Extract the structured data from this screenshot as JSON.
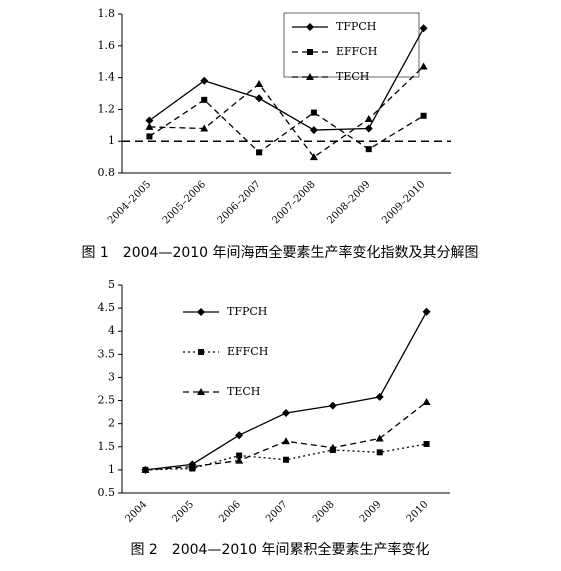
{
  "chart_data": [
    {
      "type": "line",
      "caption": "图 1　2004—2010 年间海西全要素生产率变化指数及其分解图",
      "categories": [
        "2004–2005",
        "2005–2006",
        "2006–2007",
        "2007–2008",
        "2008–2009",
        "2009–2010"
      ],
      "series": [
        {
          "name": "TFPCH",
          "color": "#000000",
          "line_style": "solid",
          "marker": "diamond",
          "values": [
            1.13,
            1.38,
            1.27,
            1.07,
            1.08,
            1.71
          ]
        },
        {
          "name": "EFFCH",
          "color": "#000000",
          "line_style": "dashed",
          "marker": "square",
          "values": [
            1.03,
            1.26,
            0.93,
            1.18,
            0.95,
            1.16
          ]
        },
        {
          "name": "TECH",
          "color": "#000000",
          "line_style": "dashed",
          "marker": "triangle",
          "values": [
            1.09,
            1.08,
            1.36,
            0.9,
            1.14,
            1.47
          ]
        }
      ],
      "ylim": [
        0.8,
        1.8
      ],
      "yticks": [
        0.8,
        1,
        1.2,
        1.4,
        1.6,
        1.8
      ],
      "reference_line": 1,
      "legend": "upper right",
      "legend_box": true
    },
    {
      "type": "line",
      "caption": "图 2　2004—2010 年间累积全要素生产率变化",
      "categories": [
        "2004",
        "2005",
        "2006",
        "2007",
        "2008",
        "2009",
        "2010"
      ],
      "series": [
        {
          "name": "TFPCH",
          "color": "#000000",
          "line_style": "solid",
          "marker": "diamond",
          "values": [
            1.0,
            1.12,
            1.75,
            2.23,
            2.39,
            2.58,
            4.42
          ]
        },
        {
          "name": "EFFCH",
          "color": "#000000",
          "line_style": "dotted",
          "marker": "square",
          "values": [
            1.0,
            1.03,
            1.31,
            1.22,
            1.43,
            1.38,
            1.56
          ]
        },
        {
          "name": "TECH",
          "color": "#000000",
          "line_style": "dashed",
          "marker": "triangle",
          "values": [
            1.0,
            1.07,
            1.2,
            1.62,
            1.48,
            1.68,
            2.47
          ]
        }
      ],
      "ylim": [
        0.5,
        5
      ],
      "yticks": [
        0.5,
        1,
        1.5,
        2,
        2.5,
        3,
        3.5,
        4,
        4.5,
        5
      ],
      "legend": "upper left",
      "legend_box": false
    }
  ]
}
